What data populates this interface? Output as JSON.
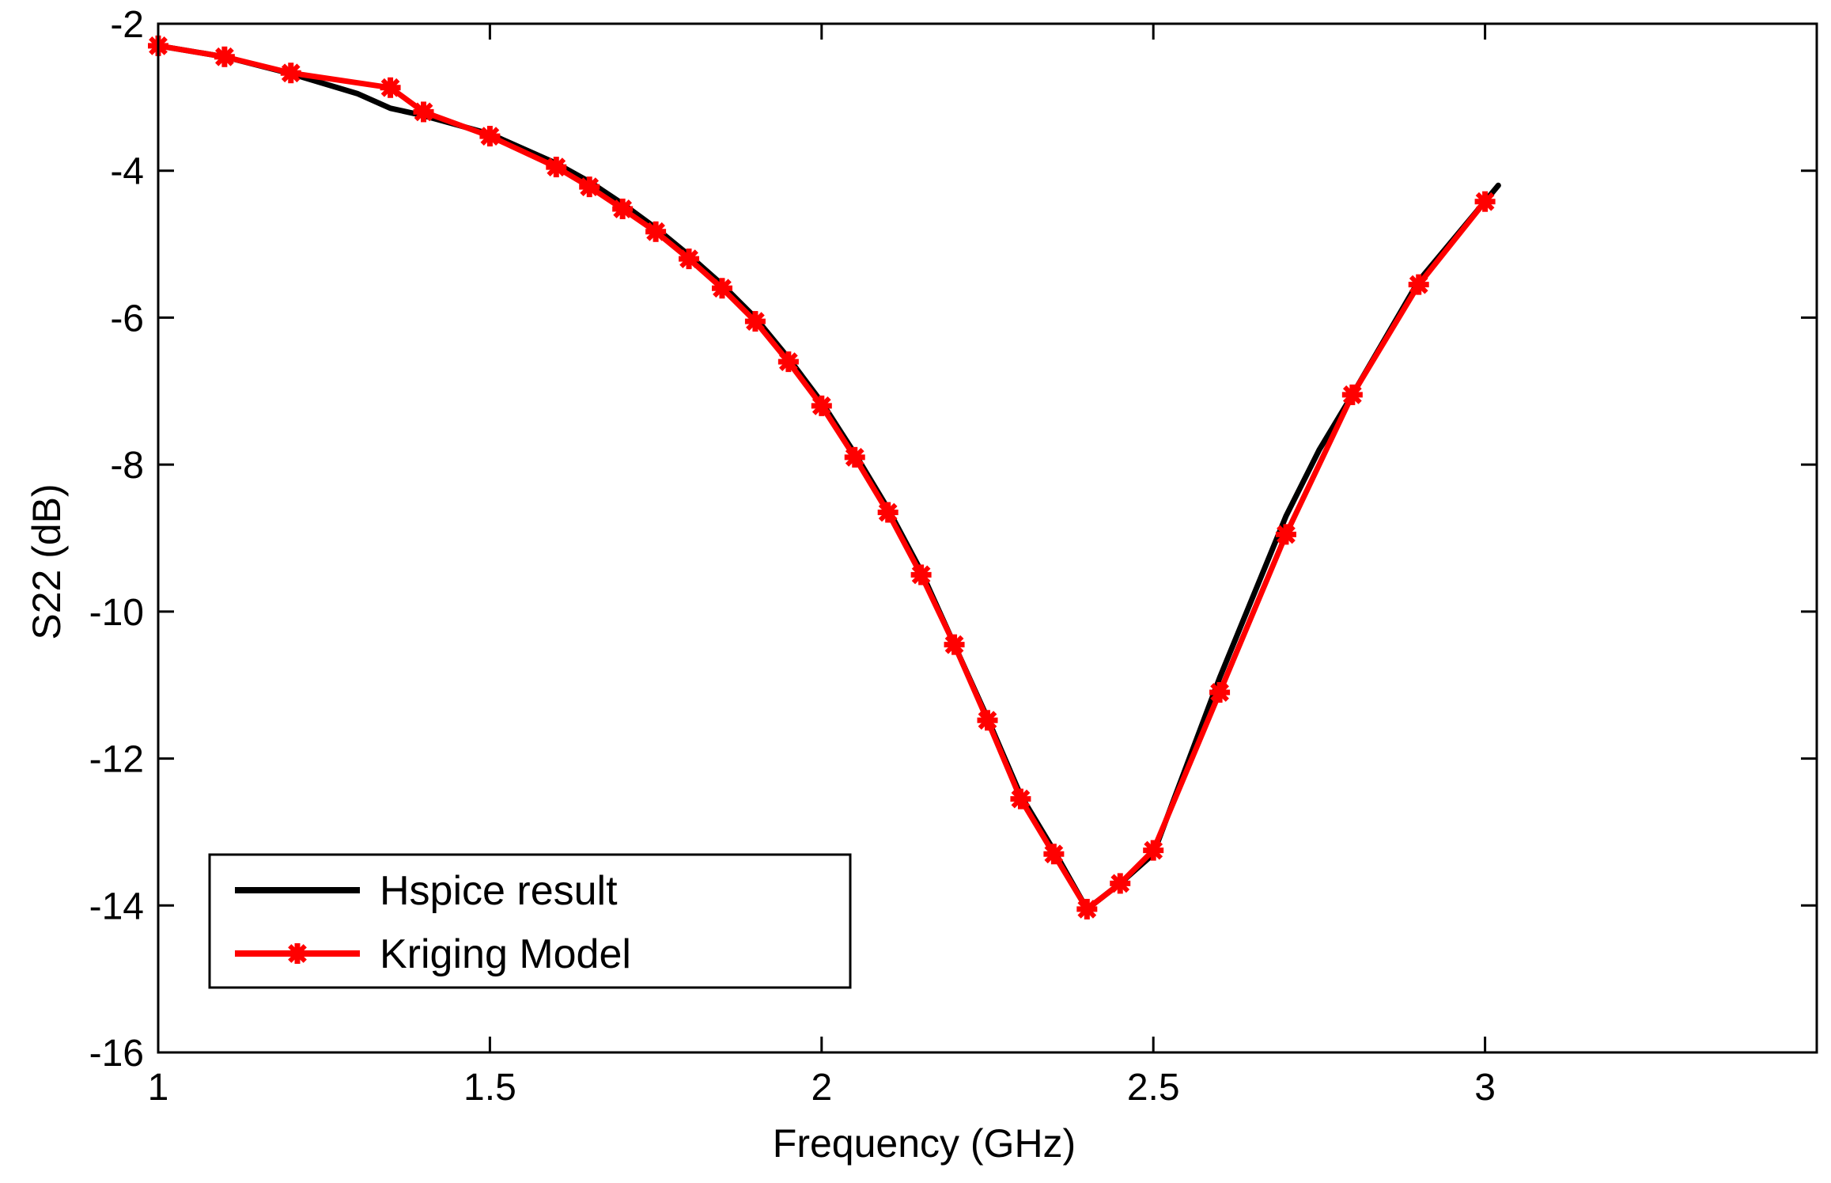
{
  "chart_data": {
    "type": "line",
    "title": "",
    "xlabel": "Frequency (GHz)",
    "ylabel": "S22 (dB)",
    "xlim": [
      1,
      3.5
    ],
    "ylim": [
      -16,
      -2
    ],
    "xticks": [
      1,
      1.5,
      2,
      2.5,
      3
    ],
    "xtick_labels": [
      "1",
      "1.5",
      "2",
      "2.5",
      "3"
    ],
    "yticks": [
      -2,
      -4,
      -6,
      -8,
      -10,
      -12,
      -14,
      -16
    ],
    "ytick_labels": [
      "-2",
      "-4",
      "-6",
      "-8",
      "-10",
      "-12",
      "-14",
      "-16"
    ],
    "grid": false,
    "legend_position": "bottom-left",
    "series": [
      {
        "name": "Hspice result",
        "color": "#000000",
        "marker": "none",
        "x": [
          1.0,
          1.1,
          1.2,
          1.3,
          1.35,
          1.4,
          1.5,
          1.6,
          1.65,
          1.7,
          1.75,
          1.8,
          1.85,
          1.9,
          1.95,
          2.0,
          2.05,
          2.1,
          2.15,
          2.2,
          2.25,
          2.3,
          2.35,
          2.4,
          2.45,
          2.5,
          2.6,
          2.7,
          2.75,
          2.8,
          2.9,
          3.02
        ],
        "y": [
          -2.3,
          -2.45,
          -2.68,
          -2.95,
          -3.15,
          -3.25,
          -3.5,
          -3.9,
          -4.15,
          -4.45,
          -4.78,
          -5.15,
          -5.55,
          -6.0,
          -6.55,
          -7.15,
          -7.85,
          -8.6,
          -9.45,
          -10.45,
          -11.45,
          -12.5,
          -13.25,
          -14.05,
          -13.7,
          -13.3,
          -10.9,
          -8.7,
          -7.8,
          -7.05,
          -5.5,
          -4.2
        ]
      },
      {
        "name": "Kriging Model",
        "color": "#ff0000",
        "marker": "asterisk",
        "x": [
          1.0,
          1.1,
          1.2,
          1.35,
          1.4,
          1.5,
          1.6,
          1.65,
          1.7,
          1.75,
          1.8,
          1.85,
          1.9,
          1.95,
          2.0,
          2.05,
          2.1,
          2.15,
          2.2,
          2.25,
          2.3,
          2.35,
          2.4,
          2.45,
          2.5,
          2.6,
          2.7,
          2.8,
          2.9,
          3.0
        ],
        "y": [
          -2.3,
          -2.45,
          -2.67,
          -2.87,
          -3.2,
          -3.53,
          -3.95,
          -4.22,
          -4.52,
          -4.83,
          -5.2,
          -5.6,
          -6.05,
          -6.6,
          -7.2,
          -7.9,
          -8.65,
          -9.5,
          -10.45,
          -11.48,
          -12.55,
          -13.3,
          -14.05,
          -13.7,
          -13.25,
          -11.1,
          -8.95,
          -7.05,
          -5.55,
          -4.42
        ]
      }
    ]
  }
}
